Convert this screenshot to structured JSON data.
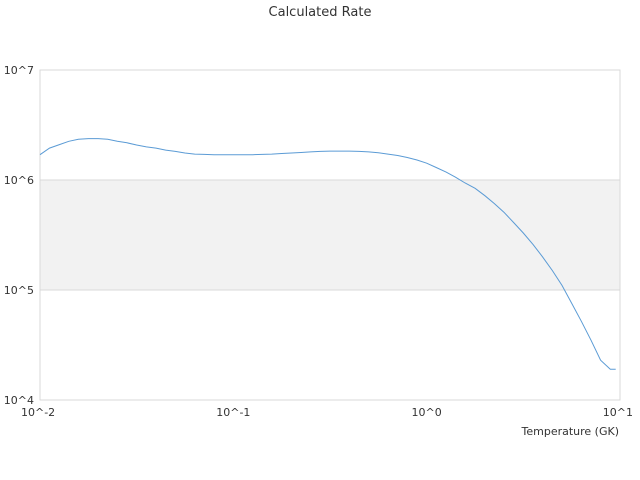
{
  "chart_data": {
    "type": "line",
    "title": "Calculated Rate",
    "xlabel": "Temperature (GK)",
    "ylabel": "",
    "x_scale": "log",
    "y_scale": "log",
    "xlim": [
      0.01,
      10
    ],
    "ylim": [
      10000,
      10000000
    ],
    "x_ticks": [
      {
        "value": 0.01,
        "label": "10^-2"
      },
      {
        "value": 0.1,
        "label": "10^-1"
      },
      {
        "value": 1,
        "label": "10^0"
      },
      {
        "value": 10,
        "label": "10^1"
      }
    ],
    "y_ticks": [
      {
        "value": 10000,
        "label": "10^4"
      },
      {
        "value": 100000,
        "label": "10^5"
      },
      {
        "value": 1000000,
        "label": "10^6"
      },
      {
        "value": 10000000,
        "label": "10^7"
      }
    ],
    "grid": true,
    "alternating_band_fill": "#f2f2f2",
    "legend": "none",
    "series": [
      {
        "color": "#5b9bd5",
        "x": [
          0.01,
          0.0112,
          0.0126,
          0.0141,
          0.0158,
          0.0178,
          0.02,
          0.0224,
          0.0251,
          0.0282,
          0.0316,
          0.0355,
          0.0398,
          0.0447,
          0.0501,
          0.0562,
          0.0631,
          0.0708,
          0.0794,
          0.0891,
          0.1,
          0.112,
          0.126,
          0.141,
          0.158,
          0.178,
          0.2,
          0.224,
          0.251,
          0.282,
          0.316,
          0.355,
          0.398,
          0.447,
          0.501,
          0.562,
          0.631,
          0.708,
          0.794,
          0.891,
          1.0,
          1.12,
          1.26,
          1.41,
          1.58,
          1.78,
          2.0,
          2.24,
          2.51,
          2.82,
          3.16,
          3.55,
          3.98,
          4.47,
          5.01,
          5.62,
          6.31,
          7.08,
          7.94,
          8.91,
          9.5
        ],
        "y": [
          1700000,
          1950000,
          2100000,
          2250000,
          2350000,
          2380000,
          2380000,
          2350000,
          2250000,
          2180000,
          2080000,
          2000000,
          1950000,
          1870000,
          1820000,
          1760000,
          1720000,
          1710000,
          1700000,
          1700000,
          1700000,
          1700000,
          1700000,
          1710000,
          1720000,
          1740000,
          1760000,
          1780000,
          1800000,
          1820000,
          1830000,
          1830000,
          1830000,
          1820000,
          1800000,
          1770000,
          1720000,
          1670000,
          1600000,
          1520000,
          1420000,
          1300000,
          1180000,
          1060000,
          940000,
          840000,
          720000,
          610000,
          510000,
          410000,
          330000,
          260000,
          200000,
          150000,
          110000,
          76000,
          52000,
          35000,
          23000,
          19000,
          19000
        ]
      }
    ]
  }
}
